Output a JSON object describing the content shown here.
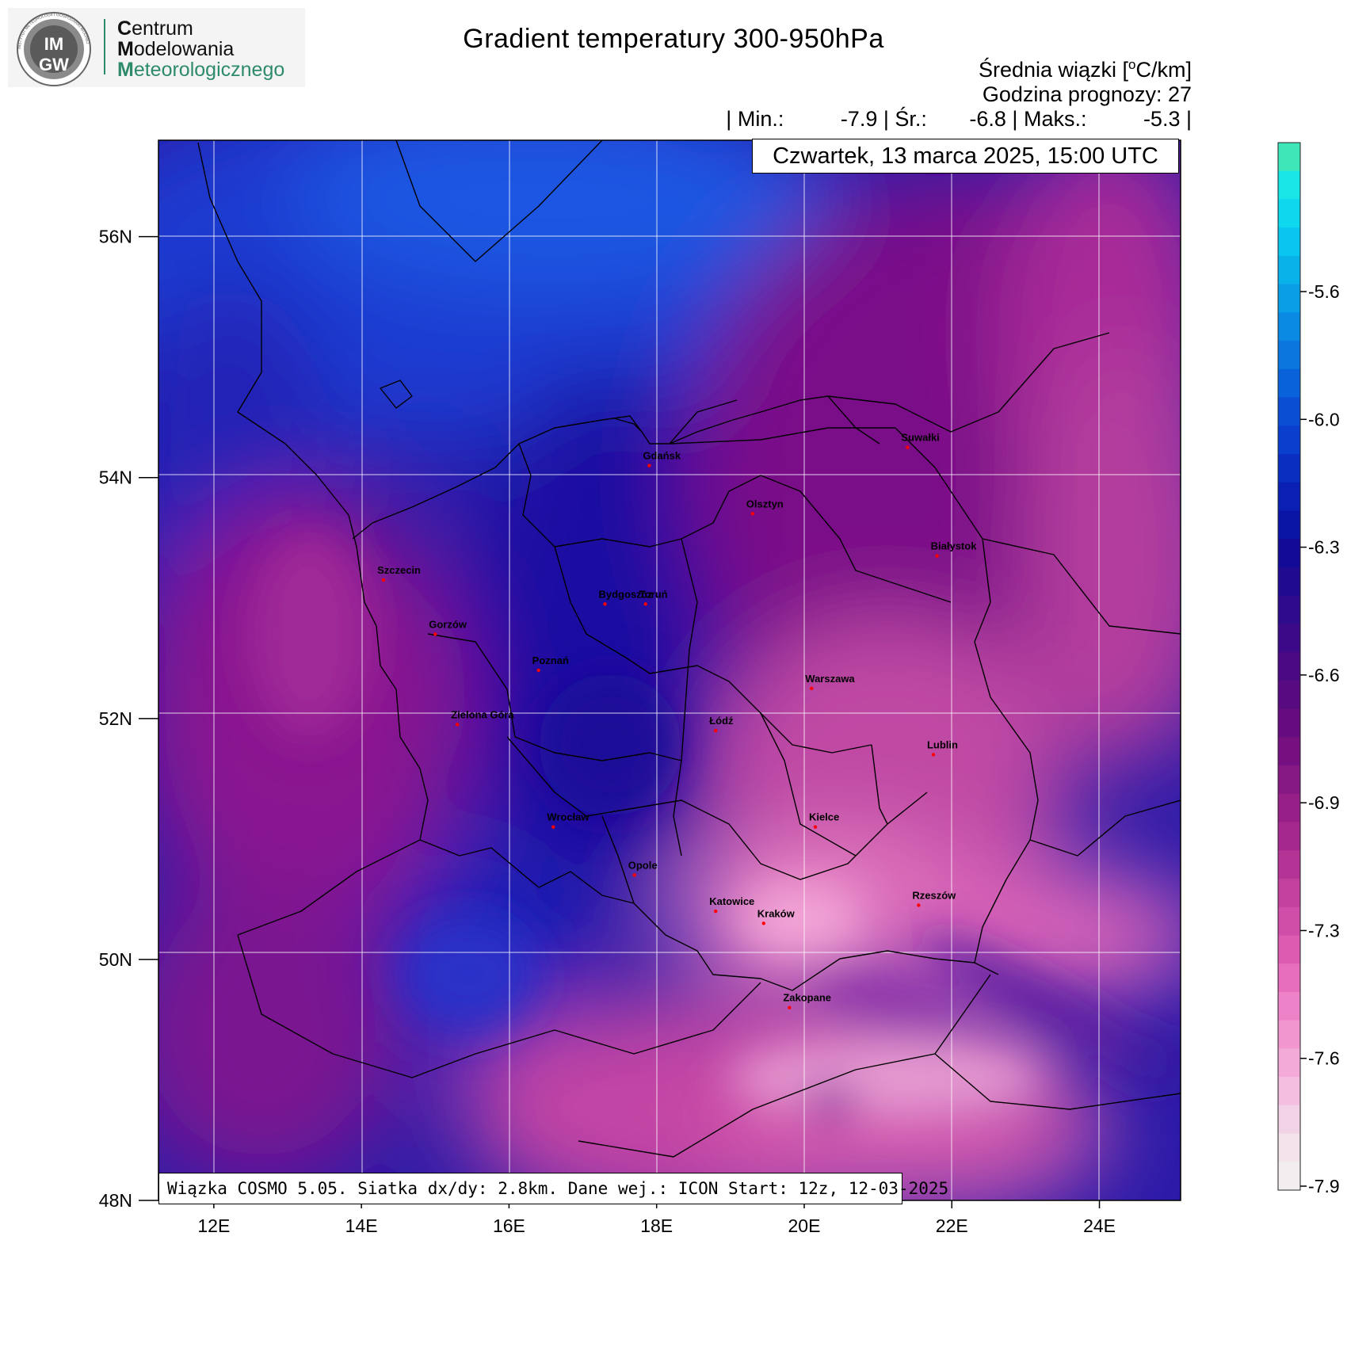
{
  "logo": {
    "badge_text_top": "IM",
    "badge_text_bottom": "GW",
    "badge_ring_text": "INSTYTUT METEOROLOGII I GOSPODARKI WODNEJ",
    "line1_first": "C",
    "line1_rest": "entrum",
    "line2_first": "M",
    "line2_rest": "odelowania",
    "line3_first": "M",
    "line3_rest": "eteorologicznego",
    "accent_color": "#2e8b6a"
  },
  "header": {
    "title": "Gradient temperatury 300-950hPa",
    "mean_prefix": "Średnia wiązki [",
    "mean_sup": "o",
    "mean_suffix": "C/km]",
    "hour_label": "Godzina prognozy: 27",
    "stats": {
      "sep": "|",
      "min_label": "Min.:",
      "min_value": "-7.9",
      "avg_label": "Śr.:",
      "avg_value": "-6.8",
      "max_label": "Maks.:",
      "max_value": "-5.3"
    },
    "date": "Czwartek, 13 marca 2025, 15:00 UTC"
  },
  "map": {
    "lon_ticks": [
      "12E",
      "14E",
      "16E",
      "18E",
      "20E",
      "22E",
      "24E"
    ],
    "lat_ticks": [
      "56N",
      "54N",
      "52N",
      "50N",
      "48N"
    ],
    "lon_values": [
      12,
      14,
      16,
      18,
      20,
      22,
      24
    ],
    "lat_values": [
      56,
      54,
      52,
      50,
      48
    ],
    "lon_range": [
      11.25,
      25.1
    ],
    "lat_range": [
      48.0,
      56.8
    ],
    "colors": {
      "deep_blue": "#1b2bb8",
      "bright_blue": "#1a55e0",
      "navy": "#1a0ea0",
      "purple": "#4a0c96",
      "magenta": "#8a138e",
      "pink": "#cc4aa6",
      "light_pink": "#f2a6d6",
      "city_marker": "#ff0000"
    },
    "cities": [
      {
        "name": "Gdańsk",
        "lon": 17.9,
        "lat": 54.1
      },
      {
        "name": "Olsztyn",
        "lon": 19.3,
        "lat": 53.7
      },
      {
        "name": "Suwałki",
        "lon": 21.4,
        "lat": 54.25
      },
      {
        "name": "Białystok",
        "lon": 21.8,
        "lat": 53.35
      },
      {
        "name": "Szczecin",
        "lon": 14.3,
        "lat": 53.15
      },
      {
        "name": "Bydgoszcz",
        "lon": 17.3,
        "lat": 52.95
      },
      {
        "name": "Toruń",
        "lon": 17.85,
        "lat": 52.95
      },
      {
        "name": "Gorzów",
        "lon": 15.0,
        "lat": 52.7
      },
      {
        "name": "Poznań",
        "lon": 16.4,
        "lat": 52.4
      },
      {
        "name": "Warszawa",
        "lon": 20.1,
        "lat": 52.25
      },
      {
        "name": "Zielona Góra",
        "lon": 15.3,
        "lat": 51.95
      },
      {
        "name": "Łódź",
        "lon": 18.8,
        "lat": 51.9
      },
      {
        "name": "Lublin",
        "lon": 21.75,
        "lat": 51.7
      },
      {
        "name": "Wrocław",
        "lon": 16.6,
        "lat": 51.1
      },
      {
        "name": "Kielce",
        "lon": 20.15,
        "lat": 51.1
      },
      {
        "name": "Opole",
        "lon": 17.7,
        "lat": 50.7
      },
      {
        "name": "Rzeszów",
        "lon": 21.55,
        "lat": 50.45
      },
      {
        "name": "Katowice",
        "lon": 18.8,
        "lat": 50.4
      },
      {
        "name": "Kraków",
        "lon": 19.45,
        "lat": 50.3
      },
      {
        "name": "Zakopane",
        "lon": 19.8,
        "lat": 49.6
      }
    ]
  },
  "colorbar": {
    "labels": [
      "-5.6",
      "-6.0",
      "-6.3",
      "-6.6",
      "-6.9",
      "-7.3",
      "-7.6",
      "-7.9"
    ],
    "swatches": [
      "#3fe6b8",
      "#18e6e6",
      "#0dd8ee",
      "#0ac6ee",
      "#0ab2ea",
      "#0a9ee6",
      "#0a8ae2",
      "#0a76de",
      "#0a62da",
      "#0a4ed4",
      "#0a3ecc",
      "#0a2ec0",
      "#0a20b2",
      "#0a14a4",
      "#140a98",
      "#200a90",
      "#2e0a8c",
      "#3c0a88",
      "#4a0a84",
      "#580a80",
      "#660c80",
      "#761080",
      "#861884",
      "#962088",
      "#a4288e",
      "#b43496",
      "#c2409e",
      "#d04ea8",
      "#dc5cb2",
      "#e66ebc",
      "#ee82c8",
      "#f296d0",
      "#f4aad8",
      "#f4bee0",
      "#f2d2e6",
      "#f2e4ea",
      "#f2eef0"
    ]
  },
  "footer": {
    "info": "Wiązka COSMO 5.05. Siatka dx/dy: 2.8km. Dane wej.: ICON Start: 12z, 12-03-2025"
  }
}
